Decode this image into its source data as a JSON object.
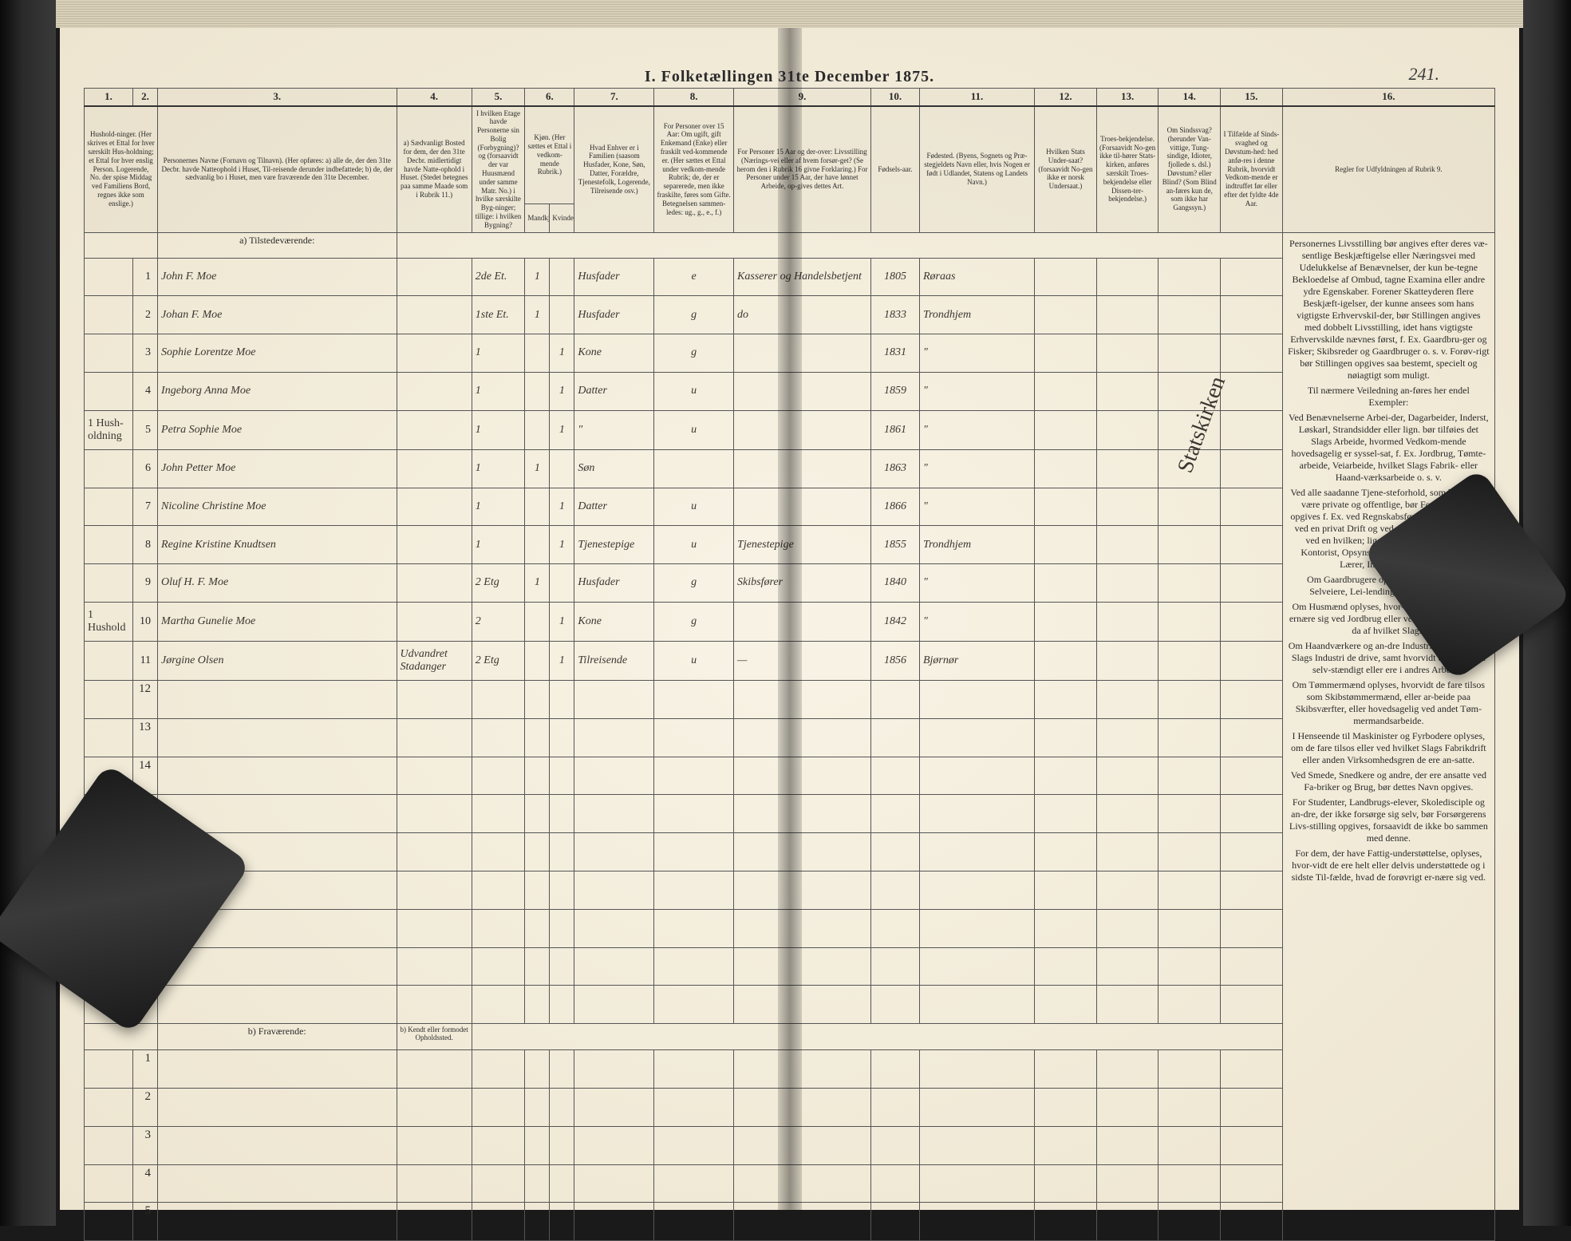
{
  "title": "I. Folketællingen 31te December 1875.",
  "page_number": "241.",
  "columns": [
    "1.",
    "2.",
    "3.",
    "4.",
    "5.",
    "6.",
    "7.",
    "8.",
    "9.",
    "10.",
    "11.",
    "12.",
    "13.",
    "14.",
    "15.",
    "16."
  ],
  "headers": {
    "c1": "Hushold-ninger. (Her skrives et Ettal for hver særskilt Hus-holdning; et Ettal for hver enslig Person. Logerende, No. der spise Middag ved Familiens Bord, regnes ikke som enslige.)",
    "c3": "Personernes Navne (Fornavn og Tilnavn). (Her opføres: a) alle de, der den 31te Decbr. havde Natteophold i Huset, Til-reisende derunder indbefattede; b) de, der sædvanlig bo i Huset, men vare fraværende den 31te December.",
    "c4": "a) Sædvanligt Bosted for dem, der den 31te Decbr. midlertidigt havde Natte-ophold i Huset. (Stedet betegnes paa samme Maade som i Rubrik 11.)",
    "c5": "I hvilken Etage havde Personerne sin Bolig (Forbygning)? og (forsaavidt der var Huusmænd under samme Matr. No.) i hvilke særskilte Byg-ninger; tillige: i hvilken Bygning?",
    "c6": "Kjøn. (Her sættes et Ettal i vedkom-mende Rubrik.)",
    "c6a": "Mandkjøn.",
    "c6b": "Kvindekjøn.",
    "c7": "Hvad Enhver er i Familien (saasom Husfader, Kone, Søn, Datter, Forældre, Tjenestefolk, Logerende, Tilreisende osv.)",
    "c8": "For Personer over 15 Aar: Om ugift, gift Enkemand (Enke) eller fraskilt ved-kommende er. (Her sættes et Ettal under vedkom-mende Rubrik; de, der er separerede, men ikke fraskilte, føres som Gifte. Betegnelsen sammen-ledes: ug., g., e., f.)",
    "c9": "For Personer 15 Aar og der-over: Livsstilling (Nærings-vei eller af hvem forsør-get? (Se herom den i Rubrik 16 givne Forklaring.) For Personer under 15 Aar, der have lønnet Arbeide, op-gives dettes Art.",
    "c10": "Fødsels-aar.",
    "c11": "Fødested. (Byens, Sognets og Præ-stegjeldets Navn eller, hvis Nogen er født i Udlandet, Statens og Landets Navn.)",
    "c12": "Hvilken Stats Under-saat? (forsaavidt No-gen ikke er norsk Undersaat.)",
    "c13": "Troes-bekjendelse. (Forsaavidt No-gen ikke til-hører Stats-kirken, anføres særskilt Troes-bekjendelse eller Dissen-ter-bekjendelse.)",
    "c14": "Om Sindssvag? (herunder Van-vittige, Tung-sindige, Idioter, fjollede s. dsl.) Døvstum? eller Blind? (Som Blind an-føres kun de, som ikke har Gangssyn.)",
    "c15": "I Tilfælde af Sinds-svaghed og Døvstum-hed: hed anfø-res i denne Rubrik, hvorvidt Vedkom-mende er indtruffet før eller efter det fyldte 4de Aar.",
    "c16": "Regler for Udfyldningen af Rubrik 9."
  },
  "section_a": "a) Tilstedeværende:",
  "section_b": "b) Fraværende:",
  "section_b2": "b) Kendt eller formodet Opholdssted.",
  "rows": [
    {
      "n": "1",
      "hh": "",
      "name": "John F. Moe",
      "c4": "",
      "c5": "2de Et.",
      "c6a": "1",
      "c6b": "",
      "c7": "Husfader",
      "c8": "e",
      "c9": "Kasserer og Handelsbetjent",
      "c10": "1805",
      "c11": "Røraas"
    },
    {
      "n": "2",
      "hh": "",
      "name": "Johan F. Moe",
      "c4": "",
      "c5": "1ste Et.",
      "c6a": "1",
      "c6b": "",
      "c7": "Husfader",
      "c8": "g",
      "c9": "do",
      "c10": "1833",
      "c11": "Trondhjem"
    },
    {
      "n": "3",
      "hh": "",
      "name": "Sophie Lorentze Moe",
      "c4": "",
      "c5": "1",
      "c6a": "",
      "c6b": "1",
      "c7": "Kone",
      "c8": "g",
      "c9": "",
      "c10": "1831",
      "c11": "\""
    },
    {
      "n": "4",
      "hh": "",
      "name": "Ingeborg Anna Moe",
      "c4": "",
      "c5": "1",
      "c6a": "",
      "c6b": "1",
      "c7": "Datter",
      "c8": "u",
      "c9": "",
      "c10": "1859",
      "c11": "\""
    },
    {
      "n": "5",
      "hh": "1 Hush-oldning",
      "name": "Petra Sophie Moe",
      "c4": "",
      "c5": "1",
      "c6a": "",
      "c6b": "1",
      "c7": "\"",
      "c8": "u",
      "c9": "",
      "c10": "1861",
      "c11": "\""
    },
    {
      "n": "6",
      "hh": "",
      "name": "John Petter Moe",
      "c4": "",
      "c5": "1",
      "c6a": "1",
      "c6b": "",
      "c7": "Søn",
      "c8": "",
      "c9": "",
      "c10": "1863",
      "c11": "\""
    },
    {
      "n": "7",
      "hh": "",
      "name": "Nicoline Christine Moe",
      "c4": "",
      "c5": "1",
      "c6a": "",
      "c6b": "1",
      "c7": "Datter",
      "c8": "u",
      "c9": "",
      "c10": "1866",
      "c11": "\""
    },
    {
      "n": "8",
      "hh": "",
      "name": "Regine Kristine Knudtsen",
      "c4": "",
      "c5": "1",
      "c6a": "",
      "c6b": "1",
      "c7": "Tjenestepige",
      "c8": "u",
      "c9": "Tjenestepige",
      "c10": "1855",
      "c11": "Trondhjem"
    },
    {
      "n": "9",
      "hh": "",
      "name": "Oluf H. F. Moe",
      "c4": "",
      "c5": "2 Etg",
      "c6a": "1",
      "c6b": "",
      "c7": "Husfader",
      "c8": "g",
      "c9": "Skibsfører",
      "c10": "1840",
      "c11": "\""
    },
    {
      "n": "10",
      "hh": "1 Hushold",
      "name": "Martha Gunelie Moe",
      "c4": "",
      "c5": "2",
      "c6a": "",
      "c6b": "1",
      "c7": "Kone",
      "c8": "g",
      "c9": "",
      "c10": "1842",
      "c11": "\""
    },
    {
      "n": "11",
      "hh": "",
      "name": "Jørgine Olsen",
      "c4": "Udvandret Stadanger",
      "c5": "2 Etg",
      "c6a": "",
      "c6b": "1",
      "c7": "Tilreisende",
      "c8": "u",
      "c9": "—",
      "c10": "1856",
      "c11": "Bjørnør"
    }
  ],
  "diag_text": "Statskirken",
  "rules_text": [
    "Personernes Livsstilling bør angives efter deres væ-sentlige Beskjæftigelse eller Næringsvei med Udelukkelse af Benævnelser, der kun be-tegne Bekloedelse af Ombud, tagne Examina eller andre ydre Egenskaber. Forener Skatteyderen flere Beskjæft-igelser, der kunne ansees som hans vigtigste Erhvervskil-der, bør Stillingen angives med dobbelt Livsstilling, idet hans vigtigste Erhvervskilde nævnes først, f. Ex. Gaardbru-ger og Fisker; Skibsreder og Gaardbruger o. s. v. Forøv-rigt bør Stillingen opgives saa bestemt, specielt og nøiagtigt som muligt.",
    "Til nærmere Veiledning an-føres her endel Exempler:",
    "Ved Benævnelserne Arbei-der, Dagarbeider, Inderst, Løskarl, Strandsidder eller lign. bør tilføies det Slags Arbeide, hvormed Vedkom-mende hovedsagelig er syssel-sat, f. Ex. Jordbrug, Tømte-arbeide, Veiarbeide, hvilket Slags Fabrik- eller Haand-værksarbeide o. s. v.",
    "Ved alle saadanne Tjene-steforhold, som baade kan være private og offentlige, bør Forholdets Art opgives f. Ex. ved Regnskabsførere, der ere ansatte ved en privat Drift og ved en offentlig Indretning ved en hvilken; ligeledes ved Fuld-mægtig, Kontorist, Opsyns-mand, Forvalter, Assistent, Lærer, Ingeniør og andre.",
    "Om Gaardbrugere oplyses, hvorvidt de ere Selveiere, Lei-lendinger eller Forpagtere.",
    "Om Husmænd oplyses, hvor-vidt de fornemmeligt ernære sig ved Jordbrug eller ved andet Ar-beide og da af hvilket Slags.",
    "Om Haandværkere og an-dre Industridrivende, hvad Slags Industri de drive, samt hvorvidt de drive den selv-stændigt eller ere i andres Arbeide.",
    "Om Tømmermænd oplyses, hvorvidt de fare tilsos som Skibstømmermænd, eller ar-beide paa Skibsværfter, eller hovedsagelig ved andet Tøm-mermandsarbeide.",
    "I Henseende til Maskinister og Fyrbodere oplyses, om de fare tilsos eller ved hvilket Slags Fabrikdrift eller anden Virksomhedsgren de ere an-satte.",
    "Ved Smede, Snedkere og andre, der ere ansatte ved Fa-briker og Brug, bør dettes Navn opgives.",
    "For Studenter, Landbrugs-elever, Skoledisciple og an-dre, der ikke forsørge sig selv, bør Forsørgerens Livs-stilling opgives, forsaavidt de ikke bo sammen med denne.",
    "For dem, der have Fattig-understøttelse, oplyses, hvor-vidt de ere helt eller delvis understøttede og i sidste Til-fælde, hvad de forøvrigt er-nære sig ved."
  ],
  "styling": {
    "page_bg": "#f5f0e0",
    "border_color": "#555555",
    "text_color": "#2a2a2a",
    "handwriting_color": "#3a3530",
    "header_font_size": 9,
    "body_font_size": 14,
    "handwriting_font": "cursive"
  }
}
